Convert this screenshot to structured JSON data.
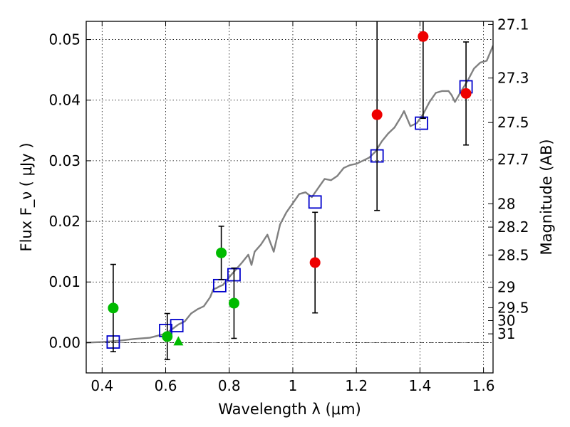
{
  "chart_data": {
    "type": "scatter",
    "xlabel": "Wavelength  λ (μm)",
    "ylabel": "Flux  F_ν  ( μJy )",
    "ylabel_right": "Magnitude (AB)",
    "xlim": [
      0.35,
      1.63
    ],
    "ylim": [
      -0.005,
      0.053
    ],
    "grid": true,
    "x_ticks": [
      {
        "value": 0.4,
        "label": "0.4"
      },
      {
        "value": 0.6,
        "label": "0.6"
      },
      {
        "value": 0.8,
        "label": "0.8"
      },
      {
        "value": 1.0,
        "label": "1"
      },
      {
        "value": 1.2,
        "label": "1.2"
      },
      {
        "value": 1.4,
        "label": "1.4"
      },
      {
        "value": 1.6,
        "label": "1.6"
      }
    ],
    "y_ticks": [
      {
        "value": 0.0,
        "label": "0.00"
      },
      {
        "value": 0.01,
        "label": "0.01"
      },
      {
        "value": 0.02,
        "label": "0.02"
      },
      {
        "value": 0.03,
        "label": "0.03"
      },
      {
        "value": 0.04,
        "label": "0.04"
      },
      {
        "value": 0.05,
        "label": "0.05"
      }
    ],
    "right_ticks": [
      {
        "mag": 27.1,
        "label": "27.1"
      },
      {
        "mag": 27.3,
        "label": "27.3"
      },
      {
        "mag": 27.5,
        "label": "27.5"
      },
      {
        "mag": 27.7,
        "label": "27.7"
      },
      {
        "mag": 28.0,
        "label": "28"
      },
      {
        "mag": 28.2,
        "label": "28.2"
      },
      {
        "mag": 28.5,
        "label": "28.5"
      },
      {
        "mag": 29.0,
        "label": "29"
      },
      {
        "mag": 29.5,
        "label": "29.5"
      },
      {
        "mag": 30.0,
        "label": "30"
      },
      {
        "mag": 31.0,
        "label": "31"
      }
    ],
    "series": [
      {
        "kind": "line",
        "color": "#808080",
        "points": [
          [
            0.35,
            0.0
          ],
          [
            0.4,
            0.0001
          ],
          [
            0.45,
            0.0003
          ],
          [
            0.5,
            0.0006
          ],
          [
            0.55,
            0.0008
          ],
          [
            0.58,
            0.0012
          ],
          [
            0.6,
            0.0015
          ],
          [
            0.62,
            0.0022
          ],
          [
            0.64,
            0.003
          ],
          [
            0.66,
            0.0035
          ],
          [
            0.68,
            0.0048
          ],
          [
            0.7,
            0.0055
          ],
          [
            0.72,
            0.006
          ],
          [
            0.74,
            0.0075
          ],
          [
            0.75,
            0.0088
          ],
          [
            0.76,
            0.009
          ],
          [
            0.77,
            0.0093
          ],
          [
            0.78,
            0.0095
          ],
          [
            0.8,
            0.0108
          ],
          [
            0.82,
            0.012
          ],
          [
            0.84,
            0.0132
          ],
          [
            0.86,
            0.0145
          ],
          [
            0.87,
            0.0128
          ],
          [
            0.88,
            0.015
          ],
          [
            0.9,
            0.0162
          ],
          [
            0.92,
            0.0178
          ],
          [
            0.94,
            0.015
          ],
          [
            0.96,
            0.0195
          ],
          [
            0.98,
            0.0215
          ],
          [
            1.0,
            0.023
          ],
          [
            1.02,
            0.0245
          ],
          [
            1.04,
            0.0248
          ],
          [
            1.06,
            0.024
          ],
          [
            1.08,
            0.0255
          ],
          [
            1.1,
            0.027
          ],
          [
            1.12,
            0.0268
          ],
          [
            1.14,
            0.0275
          ],
          [
            1.16,
            0.0288
          ],
          [
            1.18,
            0.0293
          ],
          [
            1.2,
            0.0295
          ],
          [
            1.22,
            0.03
          ],
          [
            1.24,
            0.0305
          ],
          [
            1.26,
            0.0315
          ],
          [
            1.28,
            0.0332
          ],
          [
            1.3,
            0.0345
          ],
          [
            1.32,
            0.0355
          ],
          [
            1.34,
            0.0372
          ],
          [
            1.35,
            0.0382
          ],
          [
            1.37,
            0.0357
          ],
          [
            1.39,
            0.0362
          ],
          [
            1.41,
            0.0377
          ],
          [
            1.43,
            0.0397
          ],
          [
            1.45,
            0.0412
          ],
          [
            1.47,
            0.0415
          ],
          [
            1.49,
            0.0415
          ],
          [
            1.5,
            0.0408
          ],
          [
            1.51,
            0.0397
          ],
          [
            1.53,
            0.0415
          ],
          [
            1.55,
            0.0432
          ],
          [
            1.57,
            0.0452
          ],
          [
            1.59,
            0.0462
          ],
          [
            1.61,
            0.0465
          ],
          [
            1.63,
            0.049
          ]
        ]
      },
      {
        "kind": "markers",
        "marker": "square",
        "color": "#0000cc",
        "points": [
          [
            0.435,
            0.0001
          ],
          [
            0.6,
            0.002
          ],
          [
            0.635,
            0.0028
          ],
          [
            0.77,
            0.0094
          ],
          [
            0.815,
            0.0112
          ],
          [
            1.07,
            0.0232
          ],
          [
            1.265,
            0.0308
          ],
          [
            1.405,
            0.0362
          ],
          [
            1.545,
            0.0422
          ]
        ]
      },
      {
        "kind": "markers",
        "marker": "circle",
        "color": "#00bb00",
        "points": [
          {
            "x": 0.435,
            "y": 0.0057,
            "err": 0.0072
          },
          {
            "x": 0.605,
            "y": 0.001,
            "err": 0.0038
          },
          {
            "x": 0.775,
            "y": 0.0148,
            "err": 0.0044
          },
          {
            "x": 0.815,
            "y": 0.0065,
            "err": 0.0058
          }
        ]
      },
      {
        "kind": "markers",
        "marker": "triangle",
        "color": "#00bb00",
        "points": [
          {
            "x": 0.64,
            "y": 0.0
          }
        ]
      },
      {
        "kind": "markers",
        "marker": "circle",
        "color": "#ee0000",
        "points": [
          {
            "x": 1.07,
            "y": 0.0132,
            "err": 0.0083
          },
          {
            "x": 1.265,
            "y": 0.0376,
            "err": 0.0158
          },
          {
            "x": 1.41,
            "y": 0.0505,
            "err": 0.0135
          },
          {
            "x": 1.545,
            "y": 0.0411,
            "err": 0.0085
          }
        ]
      }
    ]
  }
}
